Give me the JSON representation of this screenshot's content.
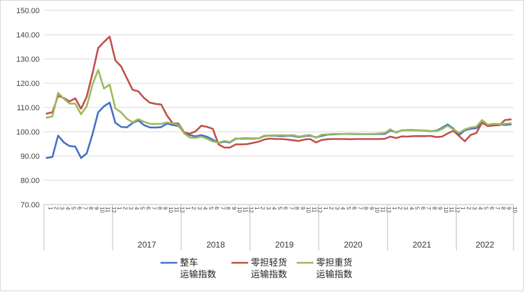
{
  "chart_data": {
    "type": "line",
    "ylim": [
      70,
      150
    ],
    "y_ticks": [
      "70.00",
      "80.00",
      "90.00",
      "100.00",
      "110.00",
      "120.00",
      "130.00",
      "140.00",
      "150.00"
    ],
    "grid": true,
    "legend_position": "bottom",
    "year_groups": [
      {
        "label": "2017",
        "start": 12,
        "count": 12
      },
      {
        "label": "2018",
        "start": 24,
        "count": 12
      },
      {
        "label": "2019",
        "start": 36,
        "count": 12
      },
      {
        "label": "2020",
        "start": 48,
        "count": 12
      },
      {
        "label": "2021",
        "start": 60,
        "count": 12
      },
      {
        "label": "2022",
        "start": 72,
        "count": 10
      }
    ],
    "month_labels": [
      "1",
      "2",
      "3",
      "4",
      "5",
      "6",
      "7",
      "8",
      "9",
      "10",
      "11",
      "12",
      "1",
      "2",
      "3",
      "4",
      "5",
      "6",
      "7",
      "8",
      "9",
      "10",
      "11",
      "12",
      "1",
      "2",
      "3",
      "4",
      "5",
      "6",
      "7",
      "8",
      "9",
      "10",
      "11",
      "12",
      "1",
      "2",
      "3",
      "4",
      "5",
      "6",
      "7",
      "8",
      "9",
      "10",
      "11",
      "12",
      "1",
      "2",
      "3",
      "4",
      "5",
      "6",
      "7",
      "8",
      "9",
      "10",
      "11",
      "12",
      "1",
      "2",
      "3",
      "4",
      "5",
      "6",
      "7",
      "8",
      "9",
      "10",
      "11",
      "12",
      "1",
      "2",
      "3",
      "4",
      "5",
      "6",
      "7",
      "8",
      "9",
      "10"
    ],
    "series": [
      {
        "name": "整车运输指数",
        "color": "#4472C4",
        "values": [
          89.2,
          89.6,
          98.4,
          95.6,
          94.1,
          93.9,
          89.2,
          91.1,
          99.0,
          108.0,
          110.5,
          112.0,
          103.7,
          102.0,
          101.8,
          103.6,
          104.7,
          102.7,
          101.8,
          101.7,
          101.9,
          103.4,
          102.8,
          102.4,
          99.7,
          98.6,
          98.1,
          98.6,
          97.9,
          96.7,
          95.4,
          95.9,
          95.6,
          97.1,
          97.2,
          97.3,
          97.2,
          97.3,
          98.2,
          98.4,
          98.3,
          98.2,
          98.3,
          98.3,
          97.8,
          98.2,
          98.4,
          97.7,
          98.3,
          98.8,
          98.9,
          99.0,
          99.1,
          99.1,
          99.0,
          99.0,
          99.0,
          99.0,
          99.1,
          99.1,
          100.5,
          99.8,
          100.6,
          100.7,
          100.7,
          100.6,
          100.5,
          100.2,
          100.4,
          101.6,
          103.0,
          101.3,
          98.6,
          100.6,
          101.2,
          101.5,
          103.5,
          102.8,
          102.9,
          103.1,
          102.8,
          103.0
        ]
      },
      {
        "name": "零担轻货运输指数",
        "color": "#C0504D",
        "values": [
          107.5,
          108.0,
          114.8,
          113.9,
          112.5,
          113.8,
          109.5,
          114.5,
          124.0,
          134.5,
          137.0,
          139.2,
          129.4,
          126.9,
          122.1,
          117.3,
          116.7,
          113.9,
          112.0,
          111.5,
          111.2,
          106.7,
          103.5,
          103.4,
          99.7,
          99.2,
          100.2,
          102.5,
          102.0,
          101.2,
          94.8,
          93.5,
          93.5,
          94.8,
          94.8,
          94.9,
          95.4,
          95.9,
          96.8,
          97.2,
          97.0,
          97.0,
          96.8,
          96.5,
          96.2,
          96.8,
          97.0,
          95.6,
          96.6,
          96.9,
          97.0,
          97.0,
          97.0,
          96.9,
          97.0,
          97.0,
          97.0,
          97.0,
          97.0,
          97.1,
          98.0,
          97.4,
          98.1,
          98.0,
          98.2,
          98.2,
          98.2,
          98.3,
          97.8,
          98.0,
          99.3,
          100.4,
          98.2,
          96.1,
          98.7,
          99.5,
          103.8,
          102.3,
          102.6,
          102.7,
          104.8,
          105.1
        ]
      },
      {
        "name": "零担重货运输指数",
        "color": "#9BBB59",
        "values": [
          105.8,
          106.3,
          116.0,
          113.6,
          111.6,
          111.6,
          107.2,
          110.5,
          119.5,
          125.5,
          117.8,
          119.4,
          109.6,
          108.0,
          105.3,
          103.9,
          105.2,
          104.1,
          103.3,
          103.2,
          103.3,
          103.8,
          103.5,
          102.8,
          99.3,
          97.6,
          97.5,
          98.0,
          97.1,
          96.0,
          95.5,
          96.2,
          95.8,
          97.3,
          97.0,
          97.1,
          97.0,
          97.3,
          98.4,
          98.5,
          98.5,
          98.6,
          98.5,
          98.6,
          98.0,
          98.4,
          98.7,
          97.5,
          98.8,
          98.9,
          99.1,
          99.1,
          99.1,
          99.2,
          99.1,
          99.1,
          99.1,
          99.1,
          99.3,
          99.5,
          101.0,
          99.6,
          100.6,
          100.6,
          100.6,
          100.6,
          100.5,
          100.3,
          100.2,
          101.1,
          102.5,
          101.0,
          99.5,
          101.0,
          101.7,
          102.1,
          104.8,
          102.9,
          103.3,
          103.2,
          103.3,
          103.5
        ]
      }
    ]
  }
}
